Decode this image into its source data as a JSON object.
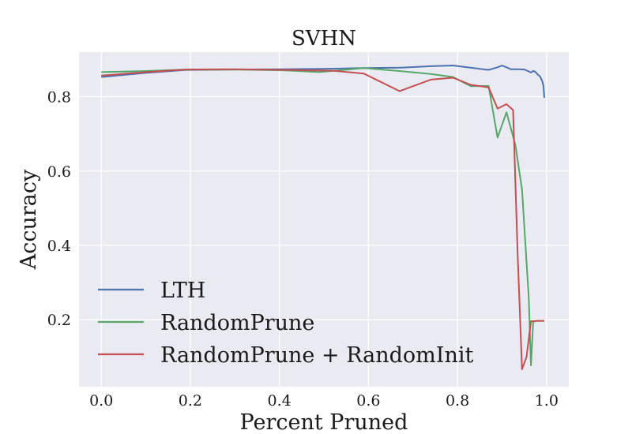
{
  "chart_data": {
    "type": "line",
    "title": "SVHN",
    "xlabel": "Percent Pruned",
    "ylabel": "Accuracy",
    "xlim": [
      -0.05,
      1.05
    ],
    "ylim": [
      0.02,
      0.92
    ],
    "xticks": [
      "0.0",
      "0.2",
      "0.4",
      "0.6",
      "0.8",
      "1.0"
    ],
    "yticks": [
      "0.2",
      "0.4",
      "0.6",
      "0.8"
    ],
    "grid": true,
    "legend_position": "lower-left",
    "background": "#eaeaf2",
    "series": [
      {
        "name": "LTH",
        "color": "#4c72b0",
        "points": [
          [
            0.0,
            0.853
          ],
          [
            0.1,
            0.864
          ],
          [
            0.19,
            0.872
          ],
          [
            0.3,
            0.873
          ],
          [
            0.41,
            0.874
          ],
          [
            0.5,
            0.875
          ],
          [
            0.59,
            0.877
          ],
          [
            0.67,
            0.878
          ],
          [
            0.74,
            0.882
          ],
          [
            0.79,
            0.884
          ],
          [
            0.87,
            0.872
          ],
          [
            0.89,
            0.879
          ],
          [
            0.9,
            0.884
          ],
          [
            0.91,
            0.879
          ],
          [
            0.92,
            0.874
          ],
          [
            0.93,
            0.874
          ],
          [
            0.94,
            0.874
          ],
          [
            0.95,
            0.873
          ],
          [
            0.96,
            0.868
          ],
          [
            0.965,
            0.865
          ],
          [
            0.97,
            0.869
          ],
          [
            0.975,
            0.867
          ],
          [
            0.98,
            0.86
          ],
          [
            0.985,
            0.855
          ],
          [
            0.99,
            0.843
          ],
          [
            0.993,
            0.83
          ],
          [
            0.995,
            0.797
          ]
        ]
      },
      {
        "name": "RandomPrune",
        "color": "#55a868",
        "points": [
          [
            0.0,
            0.866
          ],
          [
            0.1,
            0.869
          ],
          [
            0.19,
            0.873
          ],
          [
            0.3,
            0.873
          ],
          [
            0.41,
            0.871
          ],
          [
            0.49,
            0.866
          ],
          [
            0.59,
            0.877
          ],
          [
            0.67,
            0.869
          ],
          [
            0.74,
            0.861
          ],
          [
            0.79,
            0.853
          ],
          [
            0.83,
            0.828
          ],
          [
            0.87,
            0.829
          ],
          [
            0.89,
            0.69
          ],
          [
            0.91,
            0.758
          ],
          [
            0.93,
            0.67
          ],
          [
            0.945,
            0.55
          ],
          [
            0.96,
            0.26
          ],
          [
            0.965,
            0.077
          ],
          [
            0.97,
            0.195
          ],
          [
            0.98,
            0.197
          ],
          [
            0.99,
            0.197
          ],
          [
            0.995,
            0.197
          ]
        ]
      },
      {
        "name": "RandomPrune + RandomInit",
        "color": "#c44e52",
        "points": [
          [
            0.0,
            0.857
          ],
          [
            0.1,
            0.866
          ],
          [
            0.19,
            0.873
          ],
          [
            0.3,
            0.874
          ],
          [
            0.41,
            0.872
          ],
          [
            0.52,
            0.87
          ],
          [
            0.59,
            0.862
          ],
          [
            0.67,
            0.815
          ],
          [
            0.74,
            0.846
          ],
          [
            0.79,
            0.851
          ],
          [
            0.83,
            0.832
          ],
          [
            0.87,
            0.825
          ],
          [
            0.89,
            0.768
          ],
          [
            0.91,
            0.78
          ],
          [
            0.925,
            0.764
          ],
          [
            0.935,
            0.38
          ],
          [
            0.945,
            0.067
          ],
          [
            0.955,
            0.1
          ],
          [
            0.965,
            0.196
          ],
          [
            0.98,
            0.197
          ],
          [
            0.99,
            0.197
          ],
          [
            0.995,
            0.197
          ]
        ]
      }
    ]
  }
}
